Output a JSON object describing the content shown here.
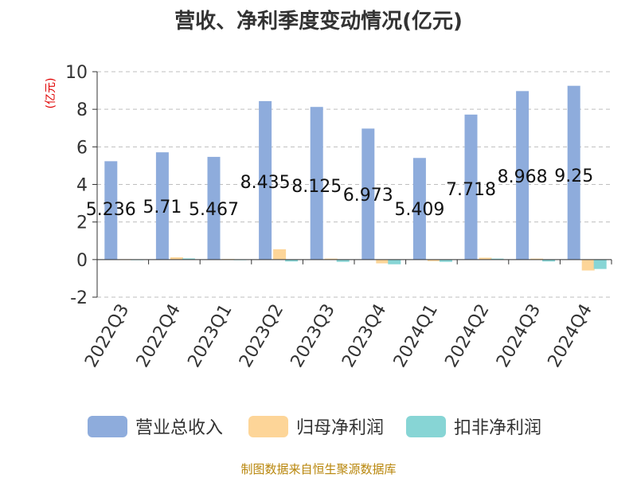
{
  "chart_data": {
    "type": "bar",
    "title": "营收、净利季度变动情况(亿元)",
    "ylabel": "(亿元)",
    "xlabel": "",
    "categories": [
      "2022Q3",
      "2022Q4",
      "2023Q1",
      "2023Q2",
      "2023Q3",
      "2023Q4",
      "2024Q1",
      "2024Q2",
      "2024Q3",
      "2024Q4"
    ],
    "ylim": [
      -2,
      10
    ],
    "yticks": [
      -2,
      0,
      2,
      4,
      6,
      8,
      10
    ],
    "grid": true,
    "legend_position": "bottom",
    "series": [
      {
        "name": "营业总收入",
        "color": "#8eacdc",
        "show_labels": true,
        "values": [
          5.236,
          5.71,
          5.467,
          8.435,
          8.125,
          6.973,
          5.409,
          7.718,
          8.968,
          9.25
        ]
      },
      {
        "name": "归母净利润",
        "color": "#fdd598",
        "show_labels": false,
        "values": [
          0.02,
          0.12,
          0.03,
          0.55,
          0.05,
          -0.2,
          -0.08,
          0.1,
          0.05,
          -0.58
        ]
      },
      {
        "name": "扣非净利润",
        "color": "#87d5d5",
        "show_labels": false,
        "values": [
          0.01,
          0.06,
          0.01,
          -0.1,
          -0.12,
          -0.25,
          -0.12,
          0.05,
          -0.1,
          -0.5
        ]
      }
    ]
  },
  "source_note": "制图数据来自恒生聚源数据库"
}
